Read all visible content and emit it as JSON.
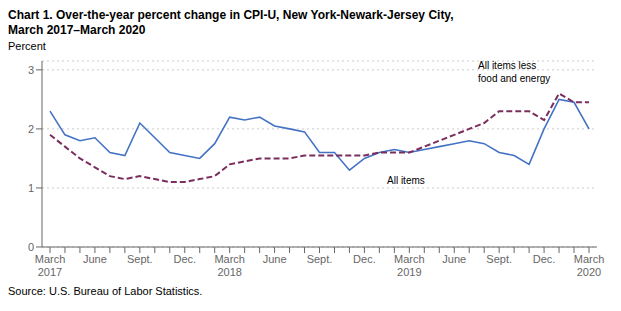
{
  "chart_data": {
    "type": "line",
    "title": "Chart 1. Over-the-year percent change in CPI-U, New York-Newark-Jersey City,\nMarch 2017–March 2020",
    "y_label": "Percent",
    "source": "Source: U.S. Bureau of Labor Statistics.",
    "annotations": [
      "All items",
      "All items less\nfood and energy"
    ],
    "categories": [
      "March\n2017",
      null,
      null,
      "June",
      null,
      null,
      "Sept.",
      null,
      null,
      "Dec.",
      null,
      null,
      "March\n2018",
      null,
      null,
      "June",
      null,
      null,
      "Sept.",
      null,
      null,
      "Dec.",
      null,
      null,
      "March\n2019",
      null,
      null,
      "June",
      null,
      null,
      "Sept.",
      null,
      null,
      "Dec.",
      null,
      null,
      "March\n2020"
    ],
    "series": [
      {
        "color": "#4472C4",
        "line_style": "solid",
        "values": [
          2.3,
          1.9,
          1.8,
          1.85,
          1.6,
          1.55,
          2.1,
          1.85,
          1.6,
          1.55,
          1.5,
          1.75,
          2.2,
          2.15,
          2.2,
          2.05,
          2.0,
          1.95,
          1.6,
          1.6,
          1.3,
          1.5,
          1.6,
          1.65,
          1.6,
          1.65,
          1.7,
          1.75,
          1.8,
          1.75,
          1.6,
          1.55,
          1.4,
          2.0,
          2.5,
          2.45,
          2.0
        ]
      },
      {
        "color": "#7B2D5E",
        "line_style": "dashed",
        "values": [
          1.9,
          1.7,
          1.5,
          1.35,
          1.2,
          1.15,
          1.2,
          1.15,
          1.1,
          1.1,
          1.15,
          1.2,
          1.4,
          1.45,
          1.5,
          1.5,
          1.5,
          1.55,
          1.55,
          1.55,
          1.55,
          1.55,
          1.6,
          1.6,
          1.6,
          1.7,
          1.8,
          1.9,
          2.0,
          2.1,
          2.3,
          2.3,
          2.3,
          2.15,
          2.6,
          2.45,
          2.45
        ]
      }
    ],
    "ylim": [
      0,
      3.15
    ],
    "yticks": [
      0,
      1,
      2,
      3
    ],
    "grid": true
  }
}
